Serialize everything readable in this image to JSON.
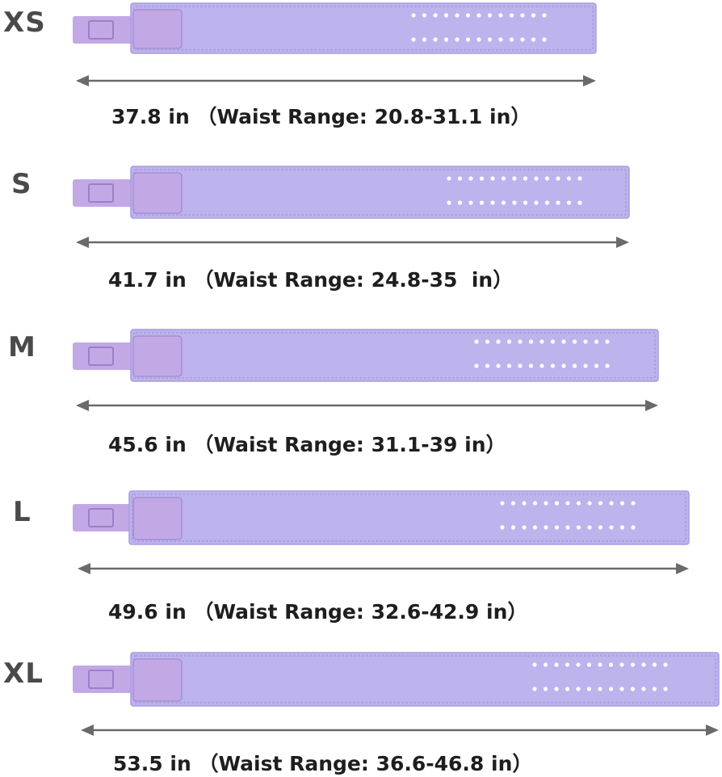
{
  "colors": {
    "belt": "#bdb3ed",
    "belt_edge": "#a89ce0",
    "stitch": "#9e92d6",
    "buckle": "#c3a8e6",
    "buckle_dark": "#9a80c8",
    "hole": "#ffffff",
    "arrow": "#6a6a6a",
    "label": "#4a4a4a",
    "text": "#1e1e1e"
  },
  "sizes": [
    {
      "size": "XS",
      "length_in": 37.8,
      "text": "37.8 in （Waist Range: 20.8-31.1 in）"
    },
    {
      "size": "S",
      "length_in": 41.7,
      "text": "41.7 in （Waist Range: 24.8-35  in）"
    },
    {
      "size": "M",
      "length_in": 45.6,
      "text": "45.6 in （Waist Range: 31.1-39 in）"
    },
    {
      "size": "L",
      "length_in": 49.6,
      "text": "49.6 in （Waist Range: 32.6-42.9 in）"
    },
    {
      "size": "XL",
      "length_in": 53.5,
      "text": "53.5 in （Waist Range: 36.6-46.8 in）"
    }
  ]
}
